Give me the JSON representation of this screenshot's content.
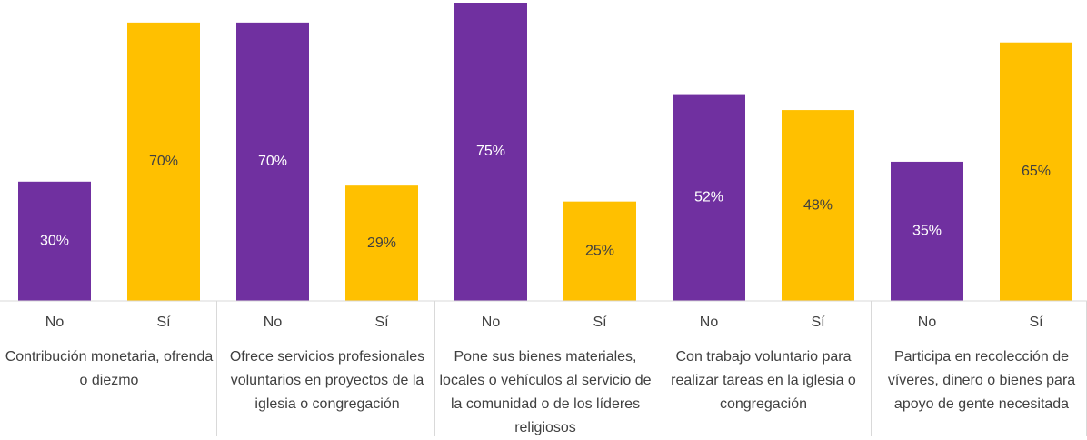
{
  "chart_data": {
    "type": "bar",
    "categories": [
      "No",
      "Sí",
      "No",
      "Sí",
      "No",
      "Sí",
      "No",
      "Sí",
      "No",
      "Sí"
    ],
    "groups": [
      "Contribución monetaria, ofrenda o diezmo",
      "Ofrece servicios profesionales voluntarios en proyectos de la iglesia o congregación",
      "Pone sus bienes materiales, locales o vehículos al servicio de la comunidad o de los líderes religiosos",
      "Con trabajo voluntario para realizar tareas en la iglesia o congregación",
      "Participa en recolección de víveres, dinero o bienes para apoyo de gente necesitada"
    ],
    "values": [
      30,
      70,
      70,
      29,
      75,
      25,
      52,
      48,
      35,
      65
    ],
    "value_labels": [
      "30%",
      "70%",
      "70%",
      "29%",
      "75%",
      "25%",
      "52%",
      "48%",
      "35%",
      "65%"
    ],
    "colors": [
      "#7030a0",
      "#ffc000"
    ]
  }
}
